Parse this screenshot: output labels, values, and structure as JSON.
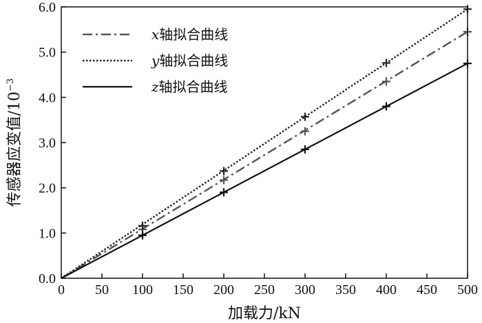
{
  "chart_data": {
    "type": "line",
    "xlabel": "加载力/kN",
    "ylabel_main": "传感器应变值/",
    "ylabel_unit": "10",
    "ylabel_exp": "−3",
    "xlim": [
      0,
      500
    ],
    "ylim": [
      0,
      6.0
    ],
    "x_ticks": [
      "0",
      "50",
      "100",
      "150",
      "200",
      "250",
      "300",
      "350",
      "400",
      "450",
      "500"
    ],
    "y_ticks": [
      "0.0",
      "1.0",
      "2.0",
      "3.0",
      "4.0",
      "5.0",
      "6.0"
    ],
    "legend_placement": "top-left",
    "grid": false,
    "series": [
      {
        "var": "x",
        "suffix": "轴拟合曲线",
        "style": "dashdot",
        "color": "#555555",
        "fit": [
          [
            0,
            0
          ],
          [
            500,
            5.45
          ]
        ],
        "markers": [
          [
            100,
            1.08
          ],
          [
            200,
            2.17
          ],
          [
            300,
            3.25
          ],
          [
            400,
            4.35
          ],
          [
            500,
            5.45
          ]
        ]
      },
      {
        "var": "y",
        "suffix": "轴拟合曲线",
        "style": "dotted",
        "color": "#222222",
        "fit": [
          [
            0,
            0
          ],
          [
            500,
            5.95
          ]
        ],
        "markers": [
          [
            100,
            1.16
          ],
          [
            200,
            2.37
          ],
          [
            300,
            3.57
          ],
          [
            400,
            4.76
          ],
          [
            500,
            5.95
          ]
        ]
      },
      {
        "var": "z",
        "suffix": "轴拟合曲线",
        "style": "solid",
        "color": "#111111",
        "fit": [
          [
            0,
            0
          ],
          [
            500,
            4.75
          ]
        ],
        "markers": [
          [
            100,
            0.95
          ],
          [
            200,
            1.9
          ],
          [
            300,
            2.85
          ],
          [
            400,
            3.8
          ],
          [
            500,
            4.75
          ]
        ]
      }
    ]
  }
}
